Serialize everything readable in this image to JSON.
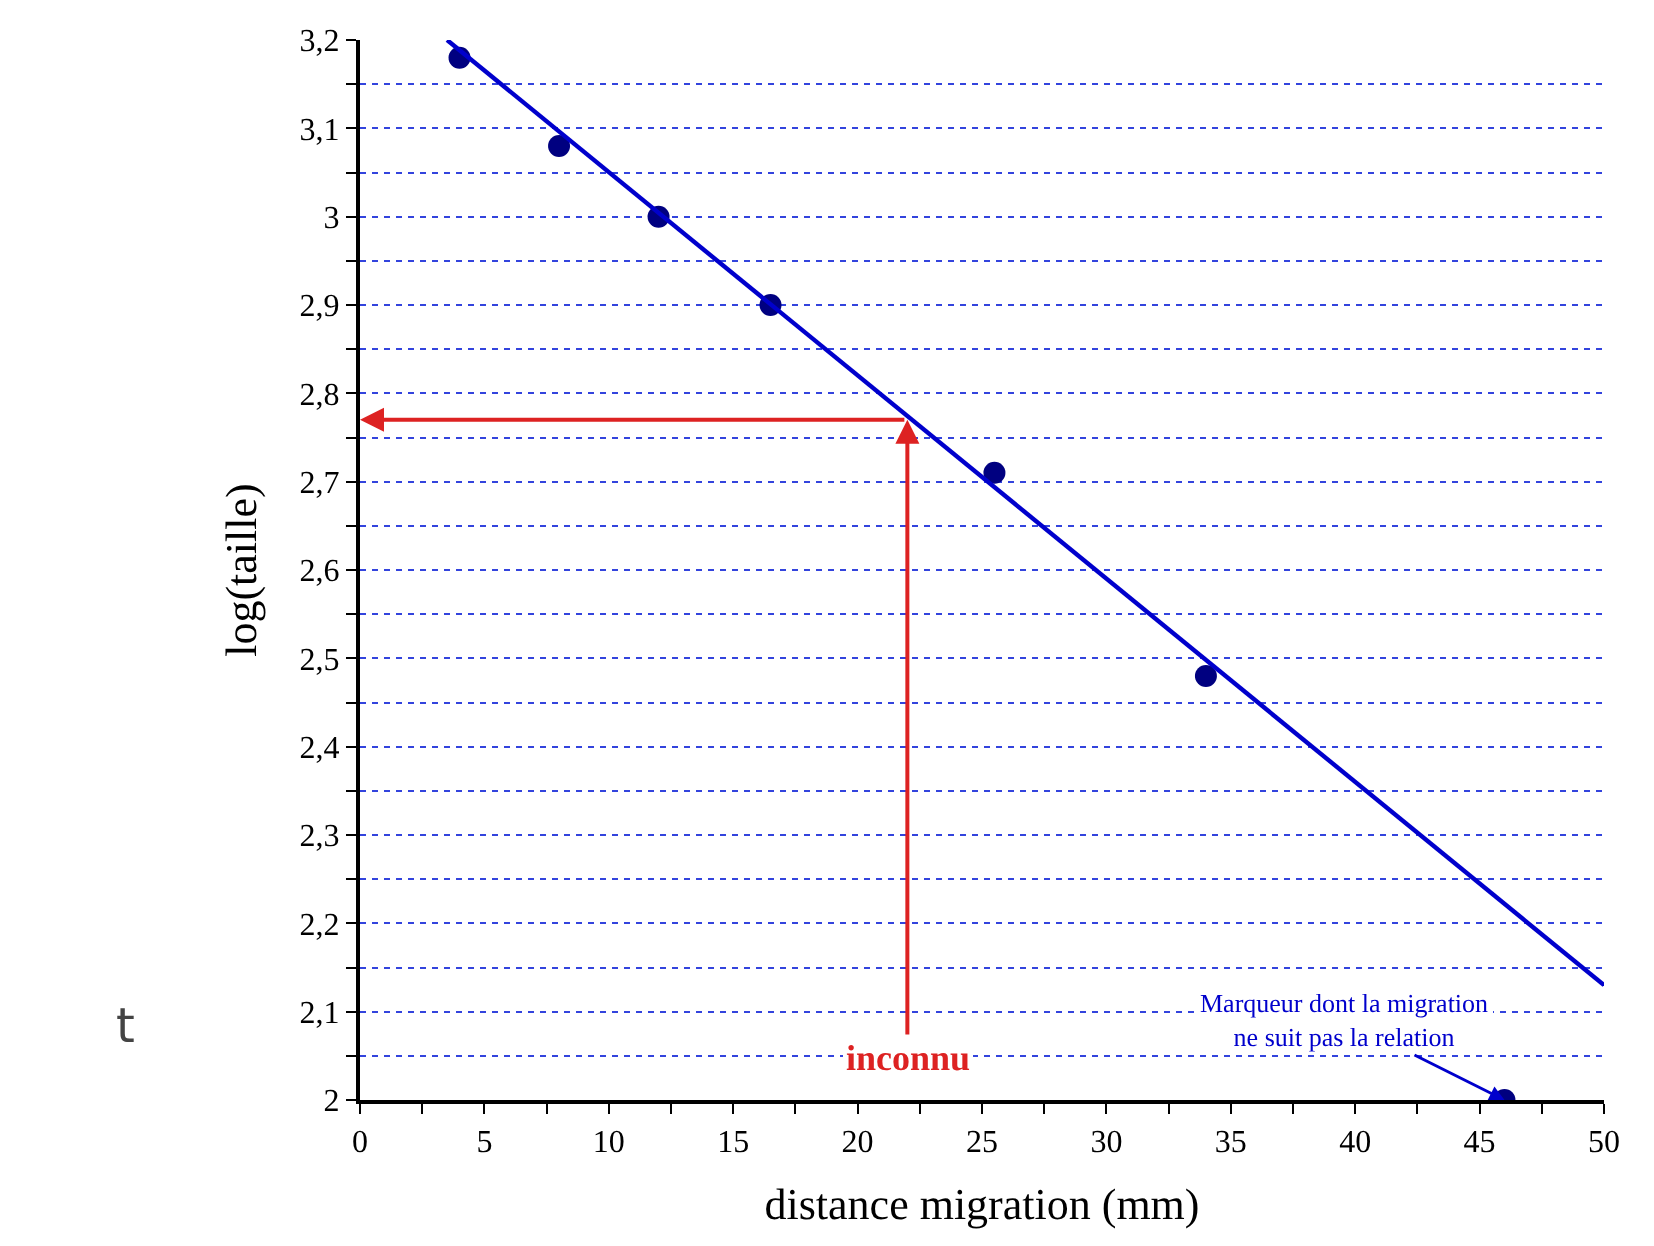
{
  "chart_data": {
    "type": "line",
    "xlabel": "distance migration (mm)",
    "ylabel": "log(taille)",
    "x": [
      4,
      8,
      12,
      16.5,
      25.5,
      34,
      46
    ],
    "series": [
      {
        "type": "scatter",
        "marker": "circle",
        "color": "#000080",
        "values": [
          3.18,
          3.08,
          3.0,
          2.9,
          2.71,
          2.48,
          2.0
        ]
      },
      {
        "color": "#0000cc",
        "x": [
          3.5,
          50
        ],
        "values": [
          3.2,
          2.13
        ]
      }
    ],
    "annotations": [
      {
        "text": "inconnu",
        "x": 22,
        "y": 2.77
      },
      {
        "text": "Marqueur dont la migration\nne suit pas la relation",
        "x": 46,
        "y": 2.0
      },
      "t"
    ],
    "xlim": [
      0,
      50
    ],
    "ylim": [
      2,
      3.2
    ],
    "xticks": [
      0,
      {
        "value": 2.5,
        "label": null
      },
      5,
      {
        "value": 7.5,
        "label": null
      },
      10,
      {
        "value": 12.5,
        "label": null
      },
      15,
      {
        "value": 17.5,
        "label": null
      },
      20,
      {
        "value": 22.5,
        "label": null
      },
      25,
      {
        "value": 27.5,
        "label": null
      },
      30,
      {
        "value": 32.5,
        "label": null
      },
      35,
      {
        "value": 37.5,
        "label": null
      },
      40,
      {
        "value": 42.5,
        "label": null
      },
      45,
      {
        "value": 47.5,
        "label": null
      },
      50
    ],
    "yticks": [
      2,
      {
        "value": 2.05,
        "label": null
      },
      {
        "value": 2.1,
        "label": "2,1"
      },
      {
        "value": 2.15,
        "label": null
      },
      {
        "value": 2.2,
        "label": "2,2"
      },
      {
        "value": 2.25,
        "label": null
      },
      {
        "value": 2.3,
        "label": "2,3"
      },
      {
        "value": 2.35,
        "label": null
      },
      {
        "value": 2.4,
        "label": "2,4"
      },
      {
        "value": 2.45,
        "label": null
      },
      {
        "value": 2.5,
        "label": "2,5"
      },
      {
        "value": 2.55,
        "label": null
      },
      {
        "value": 2.6,
        "label": "2,6"
      },
      {
        "value": 2.65,
        "label": null
      },
      {
        "value": 2.7,
        "label": "2,7"
      },
      {
        "value": 2.75,
        "label": null
      },
      {
        "value": 2.8,
        "label": "2,8"
      },
      {
        "value": 2.85,
        "label": null
      },
      {
        "value": 2.9,
        "label": "2,9"
      },
      {
        "value": 2.95,
        "label": null
      },
      3,
      {
        "value": 3.05,
        "label": null
      },
      {
        "value": 3.1,
        "label": "3,1"
      },
      {
        "value": 3.15,
        "label": null
      },
      {
        "value": 3.2,
        "label": "3,2"
      }
    ],
    "grid": "y",
    "line_style": "solid"
  }
}
